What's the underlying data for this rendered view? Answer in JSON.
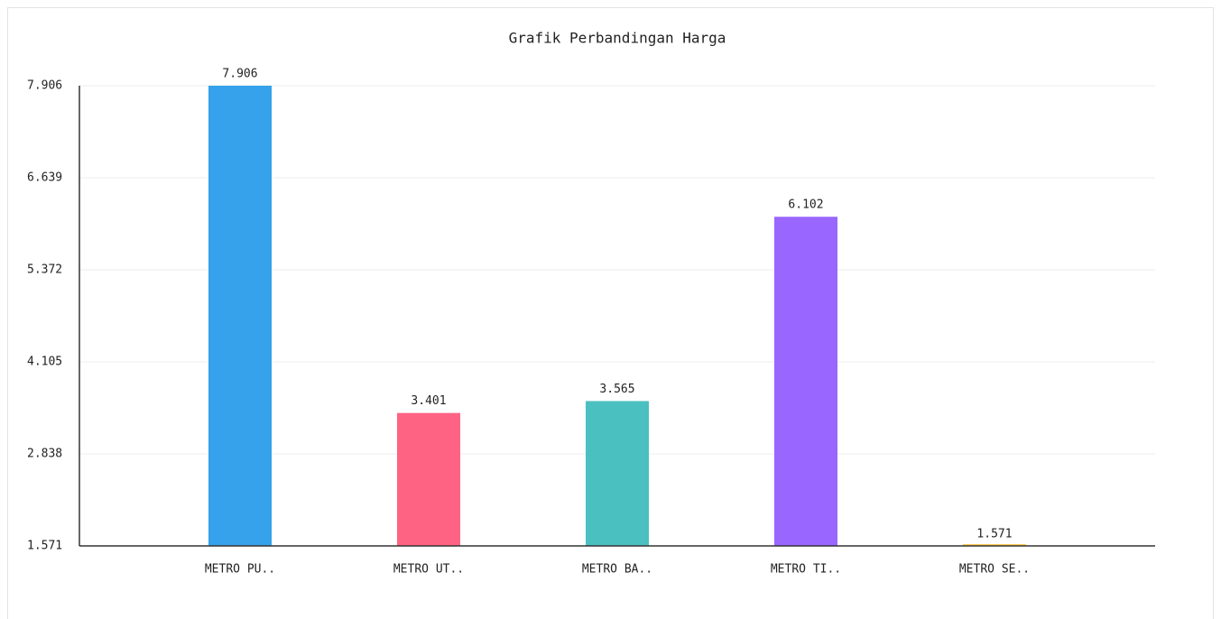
{
  "chart_data": {
    "type": "bar",
    "title": "Grafik Perbandingan Harga",
    "categories": [
      "METRO PU..",
      "METRO UT..",
      "METRO BA..",
      "METRO TI..",
      "METRO SE.."
    ],
    "values": [
      7.906,
      3.401,
      3.565,
      6.102,
      1.571
    ],
    "colors": [
      "#36a2eb",
      "#ff6384",
      "#4bc0c0",
      "#9966ff",
      "#ffcd56"
    ],
    "ylim": [
      1.571,
      7.906
    ],
    "yticks": [
      1.571,
      2.838,
      4.105,
      5.372,
      6.639,
      7.906
    ],
    "grid": true
  }
}
